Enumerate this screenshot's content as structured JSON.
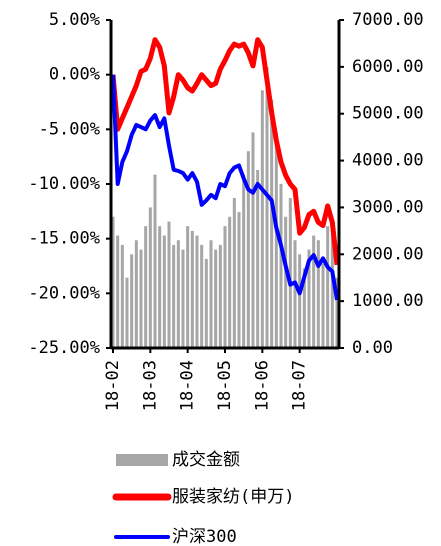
{
  "chart_data": {
    "type": "bar",
    "categories": [
      "18-02",
      null,
      null,
      null,
      null,
      null,
      null,
      null,
      "18-03",
      null,
      null,
      null,
      null,
      null,
      null,
      null,
      "18-04",
      null,
      null,
      null,
      null,
      null,
      null,
      null,
      "18-05",
      null,
      null,
      null,
      null,
      null,
      null,
      null,
      "18-06",
      null,
      null,
      null,
      null,
      null,
      null,
      null,
      "18-07",
      null,
      null,
      null,
      null,
      null,
      null,
      null,
      null
    ],
    "series": [
      {
        "name": "成交金额",
        "type": "bar",
        "axis": "y2",
        "color": "#a6a6a6",
        "values": [
          2800,
          2400,
          2200,
          1500,
          2000,
          2300,
          2100,
          2600,
          3000,
          3700,
          2600,
          2400,
          2700,
          2200,
          2300,
          2100,
          2600,
          2500,
          2400,
          2200,
          1900,
          2300,
          2100,
          2200,
          2600,
          2800,
          3200,
          2900,
          3700,
          4200,
          4600,
          3800,
          5500,
          6000,
          5300,
          4600,
          3500,
          2800,
          3200,
          2300,
          2000,
          1700,
          2100,
          2400,
          2300,
          1800,
          2600,
          2500,
          1500
        ]
      },
      {
        "name": "服装家纺(申万)",
        "type": "line",
        "color": "#ff0000",
        "values": [
          0.0,
          -5.0,
          -4.0,
          -3.0,
          -2.0,
          -1.0,
          0.3,
          0.5,
          1.5,
          3.2,
          2.5,
          0.8,
          -3.5,
          -2.0,
          0.0,
          -0.5,
          -1.2,
          -1.5,
          -0.8,
          0.0,
          -0.5,
          -1.0,
          -0.8,
          0.5,
          1.3,
          2.2,
          2.8,
          2.6,
          2.8,
          2.0,
          0.8,
          3.2,
          2.5,
          -0.5,
          -3.5,
          -6.0,
          -8.0,
          -9.2,
          -10.0,
          -10.5,
          -14.5,
          -14.0,
          -12.8,
          -12.5,
          -13.5,
          -13.8,
          -12.0,
          -13.5,
          -17.4
        ]
      },
      {
        "name": "沪深300",
        "type": "line",
        "color": "#0000ff",
        "values": [
          0.0,
          -10.0,
          -8.0,
          -7.0,
          -5.5,
          -4.6,
          -4.8,
          -5.0,
          -4.2,
          -3.7,
          -4.8,
          -4.0,
          -6.5,
          -8.7,
          -8.8,
          -9.0,
          -9.6,
          -9.0,
          -9.8,
          -11.9,
          -11.5,
          -11.0,
          -11.3,
          -10.0,
          -10.2,
          -9.0,
          -8.5,
          -8.3,
          -9.5,
          -10.5,
          -10.8,
          -10.0,
          -10.5,
          -11.0,
          -11.5,
          -14.0,
          -15.6,
          -17.5,
          -19.2,
          -19.0,
          -20.0,
          -18.5,
          -17.0,
          -16.5,
          -17.5,
          -16.8,
          -17.6,
          -18.0,
          -20.6
        ]
      }
    ],
    "ylim": [
      -25,
      5
    ],
    "yticks": [
      {
        "value": -25,
        "label": "-25.00%"
      },
      {
        "value": -20,
        "label": "-20.00%"
      },
      {
        "value": -15,
        "label": "-15.00%"
      },
      {
        "value": -10,
        "label": "-10.00%"
      },
      {
        "value": -5,
        "label": "-5.00%"
      },
      {
        "value": 0,
        "label": "0.00%"
      },
      {
        "value": 5,
        "label": "5.00%"
      }
    ],
    "y2lim": [
      0,
      7000
    ],
    "y2ticks": [
      {
        "value": 0,
        "label": "0.00"
      },
      {
        "value": 1000,
        "label": "1000.00"
      },
      {
        "value": 2000,
        "label": "2000.00"
      },
      {
        "value": 3000,
        "label": "3000.00"
      },
      {
        "value": 4000,
        "label": "4000.00"
      },
      {
        "value": 5000,
        "label": "5000.00"
      },
      {
        "value": 6000,
        "label": "6000.00"
      },
      {
        "value": 7000,
        "label": "7000.00"
      }
    ]
  }
}
